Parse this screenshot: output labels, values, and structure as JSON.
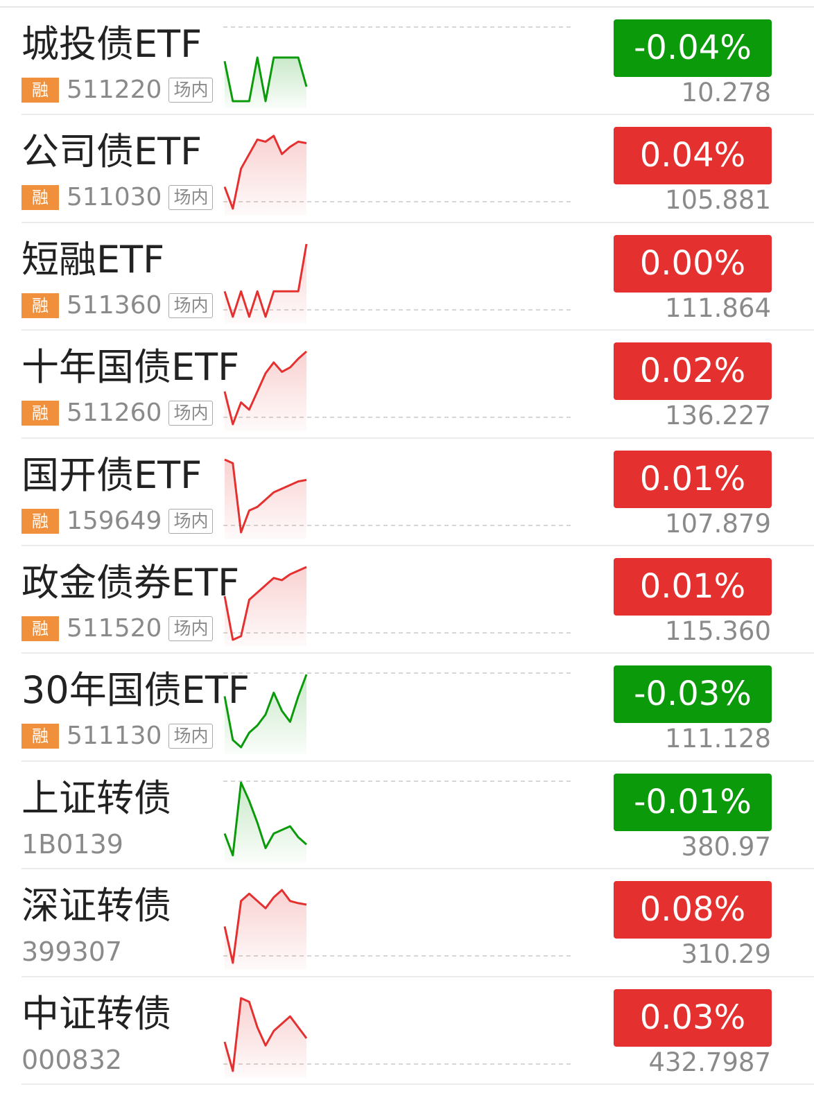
{
  "colors": {
    "up": "#e53030",
    "down": "#0a9a0a",
    "rong_tag": "#f0903c"
  },
  "items": [
    {
      "name": "城投债ETF",
      "rong": "融",
      "code": "511220",
      "tag": "场内",
      "change": "-0.04%",
      "price": "10.278",
      "direction": "down",
      "spark": [
        0.55,
        0.0,
        0.0,
        0.0,
        0.6,
        0.0,
        0.6,
        0.6,
        0.6,
        0.6,
        0.2
      ]
    },
    {
      "name": "公司债ETF",
      "rong": "融",
      "code": "511030",
      "tag": "场内",
      "change": "0.04%",
      "price": "105.881",
      "direction": "up",
      "spark": [
        0.3,
        0.0,
        0.55,
        0.75,
        0.95,
        0.92,
        1.0,
        0.75,
        0.85,
        0.92,
        0.9
      ]
    },
    {
      "name": "短融ETF",
      "rong": "融",
      "code": "511360",
      "tag": "场内",
      "change": "0.00%",
      "price": "111.864",
      "direction": "up",
      "spark": [
        0.35,
        0.0,
        0.35,
        0.0,
        0.35,
        0.0,
        0.35,
        0.35,
        0.35,
        0.35,
        1.0
      ]
    },
    {
      "name": "十年国债ETF",
      "rong": "融",
      "code": "511260",
      "tag": "场内",
      "change": "0.02%",
      "price": "136.227",
      "direction": "up",
      "spark": [
        0.45,
        0.0,
        0.3,
        0.2,
        0.45,
        0.7,
        0.85,
        0.72,
        0.78,
        0.9,
        1.0
      ]
    },
    {
      "name": "国开债ETF",
      "rong": "融",
      "code": "159649",
      "tag": "场内",
      "change": "0.01%",
      "price": "107.879",
      "direction": "up",
      "spark": [
        1.0,
        0.95,
        0.0,
        0.3,
        0.35,
        0.45,
        0.55,
        0.6,
        0.65,
        0.7,
        0.72
      ]
    },
    {
      "name": "政金债券ETF",
      "rong": "融",
      "code": "511520",
      "tag": "场内",
      "change": "0.01%",
      "price": "115.360",
      "direction": "up",
      "spark": [
        0.6,
        0.0,
        0.05,
        0.55,
        0.65,
        0.75,
        0.85,
        0.82,
        0.9,
        0.95,
        1.0
      ]
    },
    {
      "name": "30年国债ETF",
      "rong": "融",
      "code": "511130",
      "tag": "场内",
      "change": "-0.03%",
      "price": "111.128",
      "direction": "down",
      "spark": [
        0.7,
        0.1,
        0.0,
        0.2,
        0.3,
        0.45,
        0.75,
        0.5,
        0.35,
        0.7,
        1.0
      ]
    },
    {
      "name": "上证转债",
      "code": "1B0139",
      "change": "-0.01%",
      "price": "380.97",
      "direction": "down",
      "spark": [
        0.3,
        0.0,
        1.0,
        0.75,
        0.45,
        0.1,
        0.3,
        0.35,
        0.4,
        0.25,
        0.15
      ]
    },
    {
      "name": "深证转债",
      "code": "399307",
      "change": "0.08%",
      "price": "310.29",
      "direction": "up",
      "spark": [
        0.5,
        0.0,
        0.85,
        0.95,
        0.85,
        0.75,
        0.9,
        1.0,
        0.85,
        0.82,
        0.8
      ]
    },
    {
      "name": "中证转债",
      "code": "000832",
      "change": "0.03%",
      "price": "432.7987",
      "direction": "up",
      "spark": [
        0.4,
        0.0,
        1.0,
        0.95,
        0.6,
        0.35,
        0.55,
        0.65,
        0.75,
        0.6,
        0.45
      ]
    }
  ]
}
